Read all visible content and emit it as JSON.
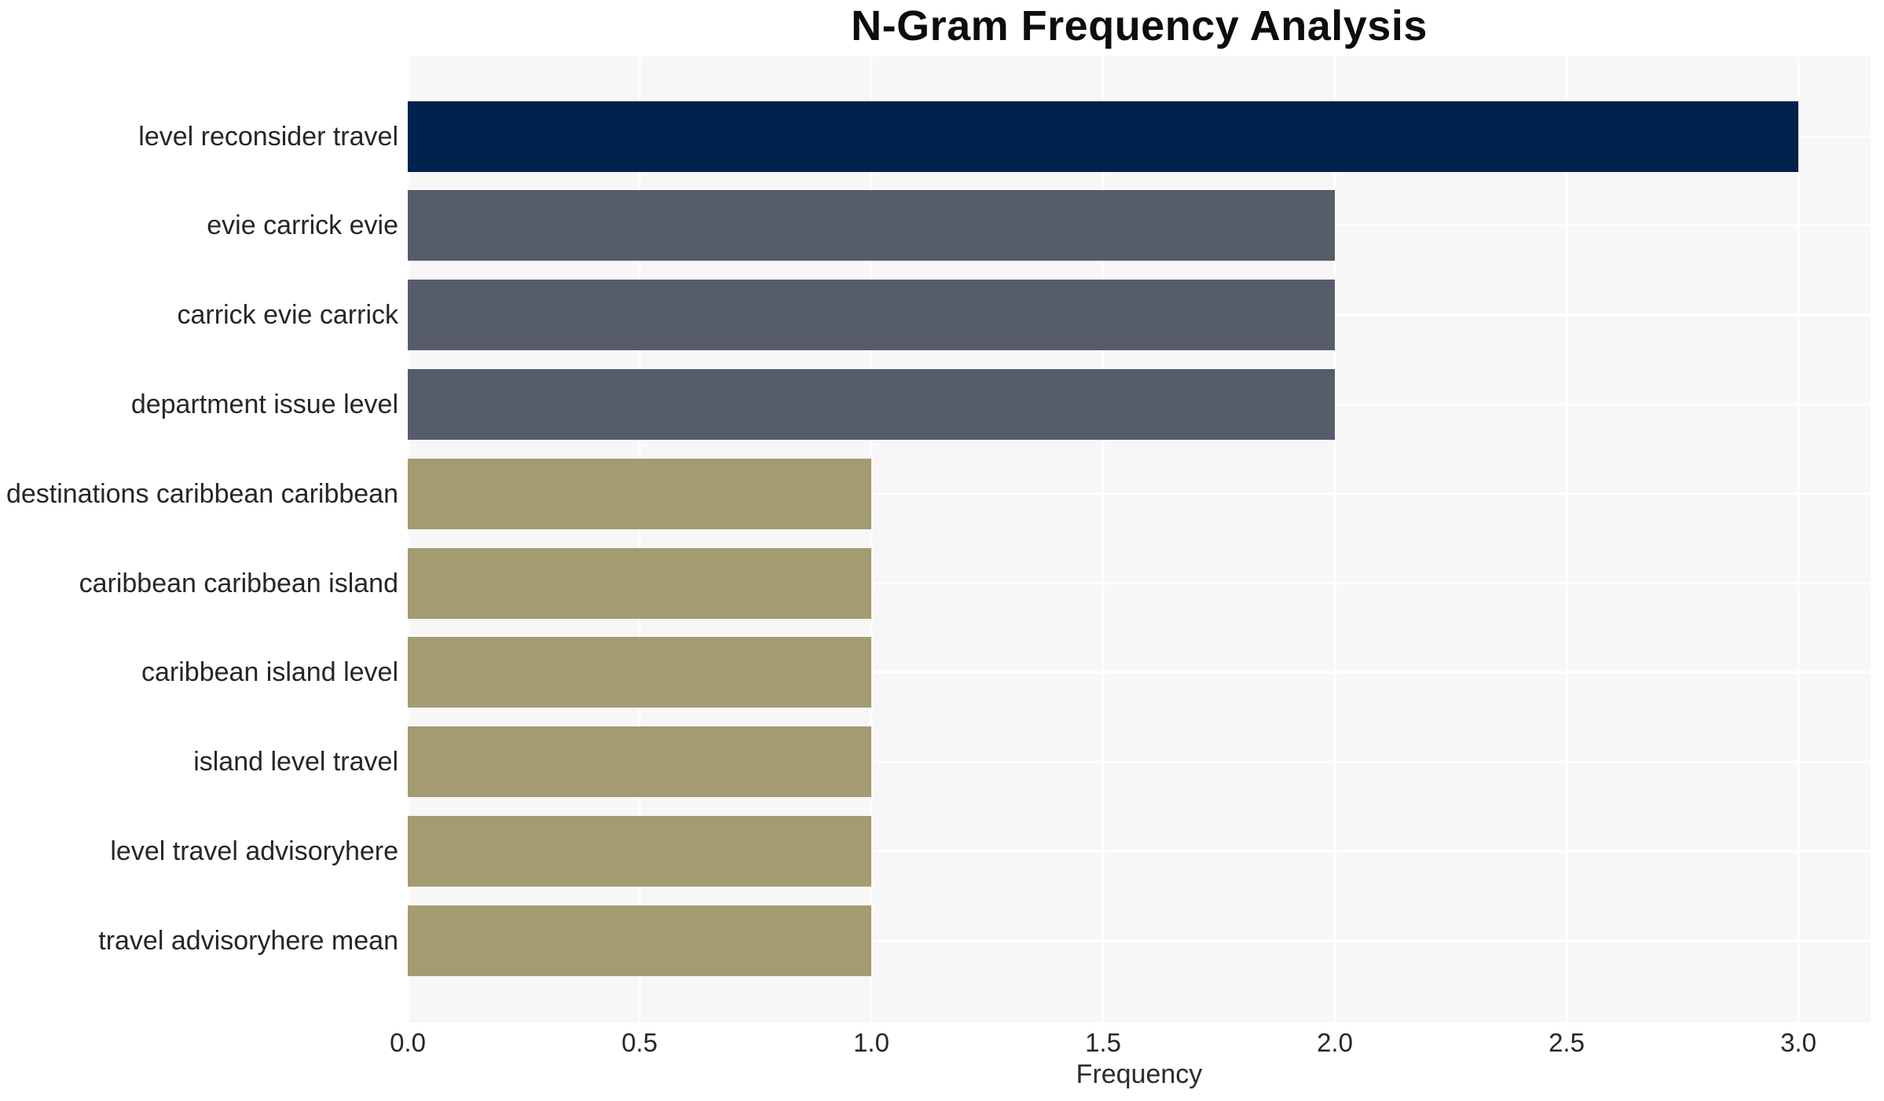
{
  "chart_data": {
    "type": "bar",
    "orientation": "horizontal",
    "title": "N-Gram Frequency Analysis",
    "xlabel": "Frequency",
    "ylabel": "",
    "categories": [
      "level reconsider travel",
      "evie carrick evie",
      "carrick evie carrick",
      "department issue level",
      "destinations caribbean caribbean",
      "caribbean caribbean island",
      "caribbean island level",
      "island level travel",
      "level travel advisoryhere",
      "travel advisoryhere mean"
    ],
    "values": [
      3,
      2,
      2,
      2,
      1,
      1,
      1,
      1,
      1,
      1
    ],
    "bar_colors": [
      "#00224E",
      "#575C6B",
      "#575C6B",
      "#575C6B",
      "#A49B72",
      "#A49B72",
      "#A49B72",
      "#A49B72",
      "#A49B72",
      "#A49B72"
    ],
    "xticks": [
      "0.0",
      "0.5",
      "1.0",
      "1.5",
      "2.0",
      "2.5",
      "3.0"
    ],
    "xtick_values": [
      0,
      0.5,
      1,
      1.5,
      2,
      2.5,
      3
    ],
    "xlim": [
      0,
      3.15
    ],
    "grid": true,
    "legend": false,
    "colors": {
      "plot_background": "#F7F7F8",
      "figure_background": "#FFFFFF",
      "grid_line": "#FFFFFF",
      "title_text": "#0D0D0D",
      "axis_text": "#262626"
    }
  }
}
